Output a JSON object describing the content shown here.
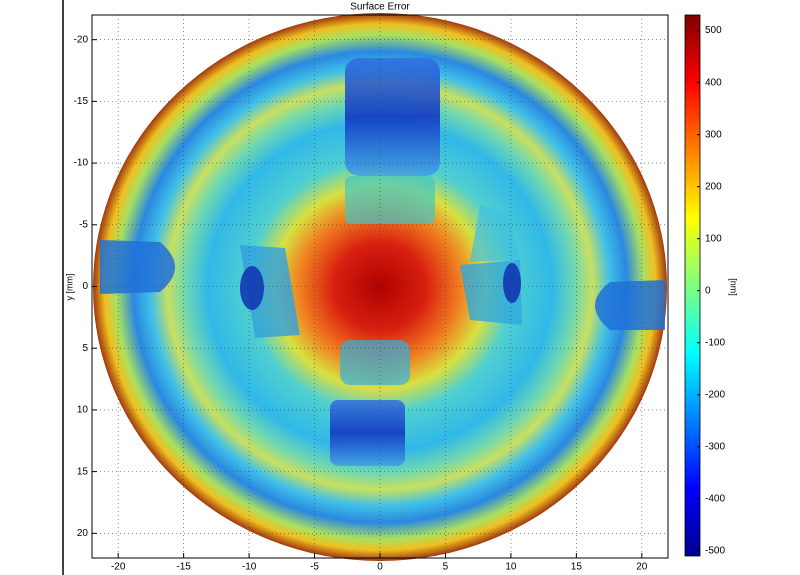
{
  "chart_data": {
    "type": "heatmap",
    "title": "Surface Error",
    "y_label": "y [mm]",
    "colorbar_label": "[nm]",
    "xlim": [
      -22,
      22
    ],
    "ylim": [
      -22,
      22
    ],
    "y_reversed": true,
    "xticks": [
      -20,
      -15,
      -10,
      -5,
      0,
      5,
      10,
      15,
      20
    ],
    "yticks": [
      -20,
      -15,
      -10,
      -5,
      0,
      5,
      10,
      15,
      20
    ],
    "clim": [
      -510,
      530
    ],
    "cticks": [
      -500,
      -400,
      -300,
      -200,
      -100,
      0,
      100,
      200,
      300,
      400,
      500
    ],
    "grid": true
  }
}
